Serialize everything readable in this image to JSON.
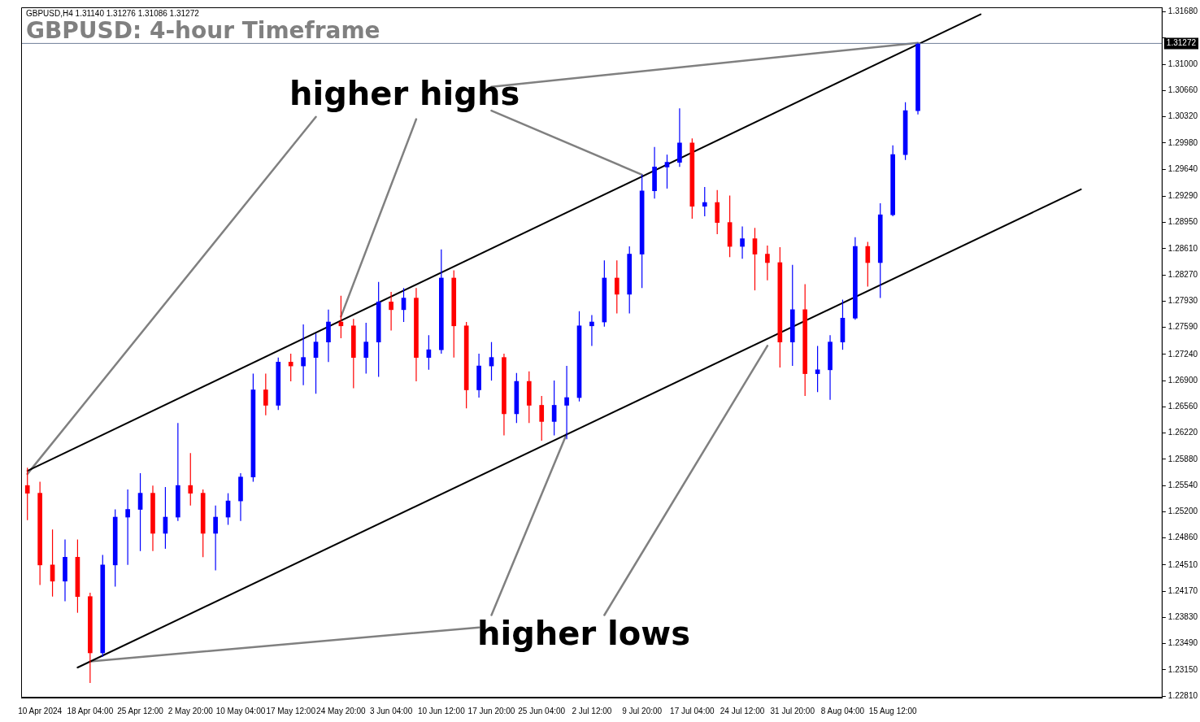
{
  "chart_data": {
    "type": "candlestick",
    "title": "GBPUSD: 4-hour Timeframe",
    "annotations": [
      "GBPUSD,H4  1.31140 1.31276 1.31086 1.31272",
      "higher highs",
      "higher lows"
    ],
    "categories": [
      null,
      "10 Apr 2024",
      null,
      null,
      null,
      "18 Apr 04:00",
      null,
      null,
      null,
      "25 Apr 12:00",
      null,
      null,
      null,
      "2 May 20:00",
      null,
      null,
      null,
      "10 May 04:00",
      null,
      null,
      null,
      "17 May 12:00",
      null,
      null,
      null,
      "24 May 20:00",
      null,
      null,
      null,
      "3 Jun 04:00",
      null,
      null,
      null,
      "10 Jun 12:00",
      null,
      null,
      null,
      "17 Jun 20:00",
      null,
      null,
      null,
      "25 Jun 04:00",
      null,
      null,
      null,
      "2 Jul 12:00",
      null,
      null,
      null,
      "9 Jul 20:00",
      null,
      null,
      null,
      "17 Jul 04:00",
      null,
      null,
      null,
      "24 Jul 12:00",
      null,
      null,
      null,
      "31 Jul 20:00",
      null,
      null,
      null,
      "8 Aug 04:00",
      null,
      null,
      null,
      "15 Aug 12:00",
      null,
      null,
      null,
      null,
      null,
      null,
      null,
      null,
      null,
      null,
      null,
      null,
      null,
      null,
      null,
      null,
      null,
      null,
      null,
      null,
      null
    ],
    "ylim": [
      1.2279,
      1.3174
    ],
    "yticks": [
      {
        "value": 1.3168,
        "label": "1.31680"
      },
      {
        "value": 1.3134,
        "label": null
      },
      {
        "value": 1.31,
        "label": "1.31000"
      },
      {
        "value": 1.3066,
        "label": "1.30660"
      },
      {
        "value": 1.3032,
        "label": "1.30320"
      },
      {
        "value": 1.2998,
        "label": "1.29980"
      },
      {
        "value": 1.2964,
        "label": "1.29640"
      },
      {
        "value": 1.2929,
        "label": "1.29290"
      },
      {
        "value": 1.2895,
        "label": "1.28950"
      },
      {
        "value": 1.2861,
        "label": "1.28610"
      },
      {
        "value": 1.2827,
        "label": "1.28270"
      },
      {
        "value": 1.2793,
        "label": "1.27930"
      },
      {
        "value": 1.2759,
        "label": "1.27590"
      },
      {
        "value": 1.2724,
        "label": "1.27240"
      },
      {
        "value": 1.269,
        "label": "1.26900"
      },
      {
        "value": 1.2656,
        "label": "1.26560"
      },
      {
        "value": 1.2622,
        "label": "1.26220"
      },
      {
        "value": 1.2588,
        "label": "1.25880"
      },
      {
        "value": 1.2554,
        "label": "1.25540"
      },
      {
        "value": 1.252,
        "label": "1.25200"
      },
      {
        "value": 1.2486,
        "label": "1.24860"
      },
      {
        "value": 1.2451,
        "label": "1.24510"
      },
      {
        "value": 1.2417,
        "label": "1.24170"
      },
      {
        "value": 1.2383,
        "label": "1.23830"
      },
      {
        "value": 1.2349,
        "label": "1.23490"
      },
      {
        "value": 1.2315,
        "label": "1.23150"
      },
      {
        "value": 1.2281,
        "label": "1.22810"
      }
    ],
    "grid": false,
    "legend": false,
    "ref_lines": [
      {
        "axis": "y",
        "value": 1.31272,
        "label": "1.31272",
        "color": "#6f7f99"
      }
    ],
    "series": [
      {
        "ohlc": [
          [
            1.2554,
            1.2577,
            1.2509,
            1.2544
          ],
          [
            1.2544,
            1.2559,
            1.2425,
            1.2451
          ],
          [
            1.2451,
            1.2497,
            1.241,
            1.243
          ],
          [
            1.243,
            1.2484,
            1.2404,
            1.2461
          ],
          [
            1.2461,
            1.2484,
            1.2389,
            1.241
          ],
          [
            1.241,
            1.2415,
            1.2298,
            1.2337
          ],
          [
            1.2337,
            1.2464,
            1.2332,
            1.2451
          ],
          [
            1.2451,
            1.2523,
            1.2423,
            1.2513
          ],
          [
            1.2513,
            1.2549,
            1.2451,
            1.2523
          ],
          [
            1.2523,
            1.257,
            1.2469,
            1.2544
          ],
          [
            1.2544,
            1.2554,
            1.2469,
            1.2492
          ],
          [
            1.2492,
            1.2552,
            1.2472,
            1.2513
          ],
          [
            1.2513,
            1.2635,
            1.2508,
            1.2554
          ],
          [
            1.2554,
            1.2596,
            1.2528,
            1.2544
          ],
          [
            1.2544,
            1.2549,
            1.2461,
            1.2492
          ],
          [
            1.2492,
            1.2528,
            1.2444,
            1.2513
          ],
          [
            1.2513,
            1.2544,
            1.2503,
            1.2534
          ],
          [
            1.2534,
            1.257,
            1.2508,
            1.2565
          ],
          [
            1.2565,
            1.2699,
            1.2559,
            1.2678
          ],
          [
            1.2678,
            1.2699,
            1.2645,
            1.2658
          ],
          [
            1.2658,
            1.272,
            1.2652,
            1.2714
          ],
          [
            1.2714,
            1.2725,
            1.2689,
            1.2709
          ],
          [
            1.2709,
            1.2763,
            1.2684,
            1.272
          ],
          [
            1.272,
            1.2751,
            1.2673,
            1.274
          ],
          [
            1.274,
            1.2782,
            1.2714,
            1.2766
          ],
          [
            1.2766,
            1.28,
            1.2745,
            1.2761
          ],
          [
            1.2761,
            1.277,
            1.268,
            1.272
          ],
          [
            1.272,
            1.2765,
            1.2699,
            1.274
          ],
          [
            1.274,
            1.2818,
            1.2695,
            1.2792
          ],
          [
            1.2792,
            1.2805,
            1.2755,
            1.2782
          ],
          [
            1.2782,
            1.281,
            1.2766,
            1.2797
          ],
          [
            1.2797,
            1.281,
            1.2689,
            1.272
          ],
          [
            1.272,
            1.2749,
            1.2704,
            1.273
          ],
          [
            1.273,
            1.286,
            1.2725,
            1.2823
          ],
          [
            1.2823,
            1.2833,
            1.272,
            1.2761
          ],
          [
            1.2761,
            1.2766,
            1.2654,
            1.2678
          ],
          [
            1.2678,
            1.2725,
            1.2668,
            1.2709
          ],
          [
            1.2709,
            1.274,
            1.269,
            1.272
          ],
          [
            1.272,
            1.2725,
            1.2619,
            1.2647
          ],
          [
            1.2647,
            1.27,
            1.2635,
            1.2689
          ],
          [
            1.2689,
            1.2702,
            1.2635,
            1.2658
          ],
          [
            1.2658,
            1.267,
            1.2612,
            1.2637
          ],
          [
            1.2637,
            1.269,
            1.2619,
            1.2658
          ],
          [
            1.2658,
            1.2709,
            1.2614,
            1.2668
          ],
          [
            1.2668,
            1.278,
            1.2663,
            1.2761
          ],
          [
            1.2761,
            1.2775,
            1.2735,
            1.2766
          ],
          [
            1.2766,
            1.2846,
            1.276,
            1.2823
          ],
          [
            1.2823,
            1.2846,
            1.2777,
            1.2802
          ],
          [
            1.2802,
            1.2864,
            1.2777,
            1.2854
          ],
          [
            1.2854,
            1.2957,
            1.281,
            1.2936
          ],
          [
            1.2936,
            1.2993,
            1.2926,
            1.2967
          ],
          [
            1.2967,
            1.2983,
            1.2939,
            1.2973
          ],
          [
            1.2973,
            1.3043,
            1.2967,
            1.2998
          ],
          [
            1.2998,
            1.3004,
            1.29,
            1.2916
          ],
          [
            1.2916,
            1.2941,
            1.2903,
            1.2921
          ],
          [
            1.2921,
            1.2937,
            1.288,
            1.2895
          ],
          [
            1.2895,
            1.293,
            1.285,
            1.2864
          ],
          [
            1.2864,
            1.289,
            1.2848,
            1.2874
          ],
          [
            1.2874,
            1.2888,
            1.2807,
            1.2854
          ],
          [
            1.2854,
            1.2865,
            1.282,
            1.2843
          ],
          [
            1.2843,
            1.2863,
            1.2707,
            1.274
          ],
          [
            1.274,
            1.284,
            1.2709,
            1.2782
          ],
          [
            1.2782,
            1.2815,
            1.267,
            1.2699
          ],
          [
            1.2699,
            1.2735,
            1.2675,
            1.2704
          ],
          [
            1.2704,
            1.2749,
            1.2665,
            1.274
          ],
          [
            1.274,
            1.2795,
            1.273,
            1.2771
          ],
          [
            1.2771,
            1.2876,
            1.2769,
            1.2864
          ],
          [
            1.2864,
            1.287,
            1.2812,
            1.2843
          ],
          [
            1.2843,
            1.292,
            1.2797,
            1.2905
          ],
          [
            1.2905,
            1.2995,
            1.2903,
            1.2983
          ],
          [
            1.2983,
            1.3051,
            1.2976,
            1.304
          ],
          [
            1.304,
            1.3128,
            1.3035,
            1.31272
          ],
          null,
          null,
          null,
          null,
          null,
          null,
          null,
          null,
          null,
          null,
          null,
          null,
          null,
          null,
          null,
          null,
          null,
          null,
          null
        ],
        "colors": [
          "#ff0000",
          "#ff0000",
          "#ff0000",
          "#0000ff",
          "#ff0000",
          "#ff0000",
          "#0000ff",
          "#0000ff",
          "#0000ff",
          "#0000ff",
          "#ff0000",
          "#0000ff",
          "#0000ff",
          "#ff0000",
          "#ff0000",
          "#0000ff",
          "#0000ff",
          "#0000ff",
          "#0000ff",
          "#ff0000",
          "#0000ff",
          "#ff0000",
          "#0000ff",
          "#0000ff",
          "#0000ff",
          "#ff0000",
          "#ff0000",
          "#0000ff",
          "#0000ff",
          "#ff0000",
          "#0000ff",
          "#ff0000",
          "#0000ff",
          "#0000ff",
          "#ff0000",
          "#ff0000",
          "#0000ff",
          "#0000ff",
          "#ff0000",
          "#0000ff",
          "#ff0000",
          "#ff0000",
          "#0000ff",
          "#0000ff",
          "#0000ff",
          "#0000ff",
          "#0000ff",
          "#ff0000",
          "#0000ff",
          "#0000ff",
          "#0000ff",
          "#0000ff",
          "#0000ff",
          "#ff0000",
          "#0000ff",
          "#ff0000",
          "#ff0000",
          "#0000ff",
          "#ff0000",
          "#ff0000",
          "#ff0000",
          "#0000ff",
          "#ff0000",
          "#0000ff",
          "#0000ff",
          "#0000ff",
          "#0000ff",
          "#ff0000",
          "#0000ff",
          "#0000ff",
          "#0000ff",
          "#0000ff",
          null,
          null,
          null,
          null,
          null,
          null,
          null,
          null,
          null,
          null,
          null,
          null,
          null,
          null,
          null,
          null,
          null,
          null,
          null
        ]
      },
      {
        "type": "line",
        "color": "#000000",
        "values": [
          1.2573,
          null,
          null,
          null,
          null,
          null,
          null,
          null,
          null,
          null,
          null,
          null,
          null,
          null,
          null,
          null,
          null,
          null,
          null,
          null,
          null,
          null,
          null,
          null,
          null,
          null,
          null,
          null,
          null,
          null,
          null,
          null,
          null,
          null,
          null,
          null,
          null,
          null,
          null,
          null,
          null,
          null,
          null,
          null,
          null,
          null,
          null,
          null,
          null,
          null,
          null,
          null,
          null,
          null,
          null,
          null,
          null,
          null,
          null,
          null,
          null,
          null,
          null,
          null,
          null,
          null,
          null,
          null,
          null,
          null,
          null,
          null,
          null,
          null,
          null,
          null,
          1.3165,
          null,
          null,
          null,
          null,
          null,
          null,
          null,
          null,
          null,
          null,
          null,
          null,
          null,
          null
        ]
      },
      {
        "type": "line",
        "color": "#000000",
        "values": [
          null,
          null,
          null,
          null,
          1.2318,
          null,
          null,
          null,
          null,
          null,
          null,
          null,
          null,
          null,
          null,
          null,
          null,
          null,
          null,
          null,
          null,
          null,
          null,
          null,
          null,
          null,
          null,
          null,
          null,
          null,
          null,
          null,
          null,
          null,
          null,
          null,
          null,
          null,
          null,
          null,
          null,
          null,
          null,
          null,
          null,
          null,
          null,
          null,
          null,
          null,
          null,
          null,
          null,
          null,
          null,
          null,
          null,
          null,
          null,
          null,
          null,
          null,
          null,
          null,
          null,
          null,
          null,
          null,
          null,
          null,
          null,
          null,
          null,
          null,
          null,
          null,
          null,
          null,
          null,
          null,
          null,
          null,
          null,
          null,
          1.2938,
          null,
          null,
          null,
          null,
          null,
          null
        ]
      },
      {
        "type": "line",
        "color": "#808080",
        "values": [
          1.2569,
          null,
          null,
          null,
          null,
          null,
          null,
          null,
          null,
          null,
          null,
          null,
          null,
          null,
          null,
          null,
          null,
          null,
          null,
          null,
          null,
          null,
          null,
          1.3032,
          null,
          null,
          null,
          null,
          null,
          null,
          null,
          null,
          null,
          null,
          null,
          null,
          null,
          null,
          null,
          null,
          null,
          null,
          null,
          null,
          null,
          null,
          null,
          null,
          null,
          null,
          null,
          null,
          null,
          null,
          null,
          null,
          null,
          null,
          null,
          null,
          null,
          null,
          null,
          null,
          null,
          null,
          null,
          null,
          null,
          null,
          null,
          null,
          null,
          null,
          null,
          null,
          null,
          null,
          null,
          null,
          null,
          null,
          null,
          null,
          null,
          null,
          null,
          null,
          null,
          null,
          null
        ]
      },
      {
        "type": "line",
        "color": "#808080",
        "values": [
          null,
          null,
          null,
          null,
          null,
          null,
          null,
          null,
          null,
          null,
          null,
          null,
          null,
          null,
          null,
          null,
          null,
          null,
          null,
          null,
          null,
          null,
          null,
          null,
          null,
          1.2773,
          null,
          null,
          null,
          null,
          null,
          1.3029,
          null,
          null,
          null,
          null,
          null,
          null,
          null,
          null,
          null,
          null,
          null,
          null,
          null,
          null,
          null,
          null,
          null,
          null,
          null,
          null,
          null,
          null,
          null,
          null,
          null,
          null,
          null,
          null,
          null,
          null,
          null,
          null,
          null,
          null,
          null,
          null,
          null,
          null,
          null,
          null,
          null,
          null,
          null,
          null,
          null,
          null,
          null,
          null,
          null,
          null,
          null,
          null,
          null,
          null,
          null,
          null,
          null,
          null,
          null
        ]
      },
      {
        "type": "line",
        "color": "#808080",
        "values": [
          null,
          null,
          null,
          null,
          null,
          null,
          null,
          null,
          null,
          null,
          null,
          null,
          null,
          null,
          null,
          null,
          null,
          null,
          null,
          null,
          null,
          null,
          null,
          null,
          null,
          null,
          null,
          null,
          null,
          null,
          null,
          null,
          null,
          null,
          null,
          null,
          null,
          1.304,
          null,
          null,
          null,
          null,
          null,
          null,
          null,
          null,
          null,
          null,
          null,
          1.2957,
          null,
          null,
          null,
          null,
          null,
          null,
          null,
          null,
          null,
          null,
          null,
          null,
          null,
          null,
          null,
          null,
          null,
          null,
          null,
          null,
          null,
          null,
          null,
          null,
          null,
          null,
          null,
          null,
          null,
          null,
          null,
          null,
          null,
          null,
          null,
          null,
          null,
          null,
          null,
          null,
          null
        ]
      },
      {
        "type": "line",
        "color": "#808080",
        "values": [
          null,
          null,
          null,
          null,
          null,
          null,
          null,
          null,
          null,
          null,
          null,
          null,
          null,
          null,
          null,
          null,
          null,
          null,
          null,
          null,
          null,
          null,
          null,
          null,
          null,
          null,
          null,
          null,
          null,
          null,
          null,
          null,
          null,
          null,
          null,
          null,
          null,
          1.3071,
          null,
          null,
          null,
          null,
          null,
          null,
          null,
          null,
          null,
          null,
          null,
          null,
          null,
          null,
          null,
          null,
          null,
          null,
          null,
          null,
          null,
          null,
          null,
          null,
          null,
          null,
          null,
          null,
          null,
          null,
          null,
          null,
          null,
          1.3128,
          null,
          null,
          null,
          null,
          null,
          null,
          null,
          null,
          null,
          null,
          null,
          null,
          null,
          null,
          null,
          null,
          null,
          null,
          null
        ]
      },
      {
        "type": "line",
        "color": "#808080",
        "values": [
          null,
          null,
          null,
          null,
          null,
          null,
          null,
          null,
          null,
          null,
          null,
          null,
          null,
          null,
          null,
          null,
          null,
          null,
          null,
          null,
          null,
          null,
          null,
          null,
          null,
          null,
          null,
          null,
          null,
          null,
          null,
          null,
          null,
          null,
          null,
          null,
          null,
          1.2386,
          null,
          null,
          null,
          null,
          null,
          1.2621,
          null,
          null,
          null,
          null,
          null,
          null,
          null,
          null,
          null,
          null,
          null,
          null,
          null,
          null,
          null,
          null,
          null,
          null,
          null,
          null,
          null,
          null,
          null,
          null,
          null,
          null,
          null,
          null,
          null,
          null,
          null,
          null,
          null,
          null,
          null,
          null,
          null,
          null,
          null,
          null,
          null,
          null,
          null,
          null,
          null,
          null,
          null
        ]
      },
      {
        "type": "line",
        "color": "#808080",
        "values": [
          null,
          null,
          null,
          null,
          null,
          null,
          null,
          null,
          null,
          null,
          null,
          null,
          null,
          null,
          null,
          null,
          null,
          null,
          null,
          null,
          null,
          null,
          null,
          null,
          null,
          null,
          null,
          null,
          null,
          null,
          null,
          null,
          null,
          null,
          null,
          null,
          null,
          null,
          null,
          null,
          null,
          null,
          null,
          null,
          null,
          null,
          1.2386,
          null,
          null,
          null,
          null,
          null,
          null,
          null,
          null,
          null,
          null,
          null,
          null,
          1.2735,
          null,
          null,
          null,
          null,
          null,
          null,
          null,
          null,
          null,
          null,
          null,
          null,
          null,
          null,
          null,
          null,
          null,
          null,
          null,
          null,
          null,
          null,
          null,
          null,
          null,
          null,
          null,
          null,
          null,
          null,
          null
        ]
      },
      {
        "type": "line",
        "color": "#808080",
        "values": [
          null,
          null,
          null,
          null,
          null,
          1.2326,
          null,
          null,
          null,
          null,
          null,
          null,
          null,
          null,
          null,
          null,
          null,
          null,
          null,
          null,
          null,
          null,
          null,
          null,
          null,
          null,
          null,
          null,
          null,
          null,
          null,
          null,
          null,
          null,
          null,
          null,
          1.237,
          null,
          null,
          null,
          null,
          null,
          null,
          null,
          null,
          null,
          null,
          null,
          null,
          null,
          null,
          null,
          null,
          null,
          null,
          null,
          null,
          null,
          null,
          null,
          null,
          null,
          null,
          null,
          null,
          null,
          null,
          null,
          null,
          null,
          null,
          null,
          null,
          null,
          null,
          null,
          null,
          null,
          null,
          null,
          null,
          null,
          null,
          null,
          null,
          null,
          null,
          null,
          null,
          null,
          null
        ]
      }
    ]
  }
}
